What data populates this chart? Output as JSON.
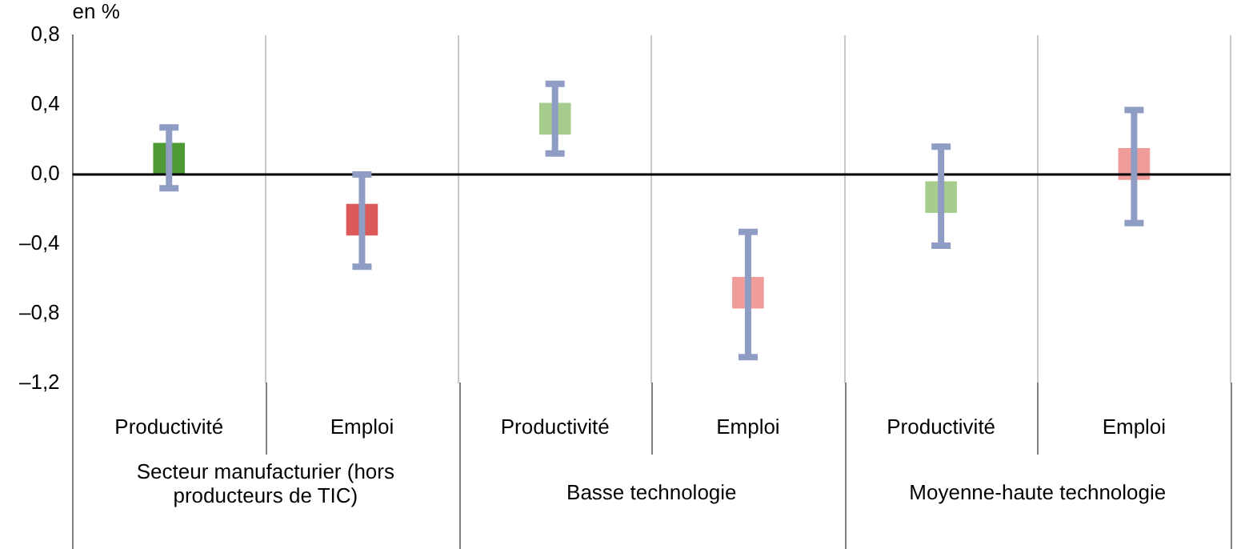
{
  "chart_data": {
    "type": "scatter",
    "ylabel": "en %",
    "categories": [
      "Productivité",
      "Emploi",
      "Productivité",
      "Emploi",
      "Productivité",
      "Emploi"
    ],
    "values": [
      0.09,
      -0.26,
      0.32,
      -0.68,
      -0.13,
      0.06
    ],
    "colors": [
      "#4e9a34",
      "#dc5a5a",
      "#a6cc8e",
      "#ef9c9a",
      "#a6cc8e",
      "#ef9c9a"
    ],
    "errors": [
      [
        -0.08,
        0.27
      ],
      [
        -0.53,
        0.0
      ],
      [
        0.12,
        0.52
      ],
      [
        -1.05,
        -0.33
      ],
      [
        -0.41,
        0.16
      ],
      [
        -0.28,
        0.37
      ]
    ],
    "ylim": [
      -1.2,
      0.8
    ],
    "yticks": [
      {
        "value": -1.2,
        "label": "–1,2"
      },
      {
        "value": -0.8,
        "label": "–0,8"
      },
      {
        "value": -0.4,
        "label": "–0,4"
      },
      {
        "value": 0,
        "label": "0,0"
      },
      {
        "value": 0.4,
        "label": "0,4"
      },
      {
        "value": 0.8,
        "label": "0,8"
      }
    ],
    "grid": "x",
    "marker": "square",
    "annotations": [
      "Secteur manufacturier (hors producteurs de TIC)",
      "Basse technologie",
      "Moyenne-haute technologie"
    ]
  }
}
